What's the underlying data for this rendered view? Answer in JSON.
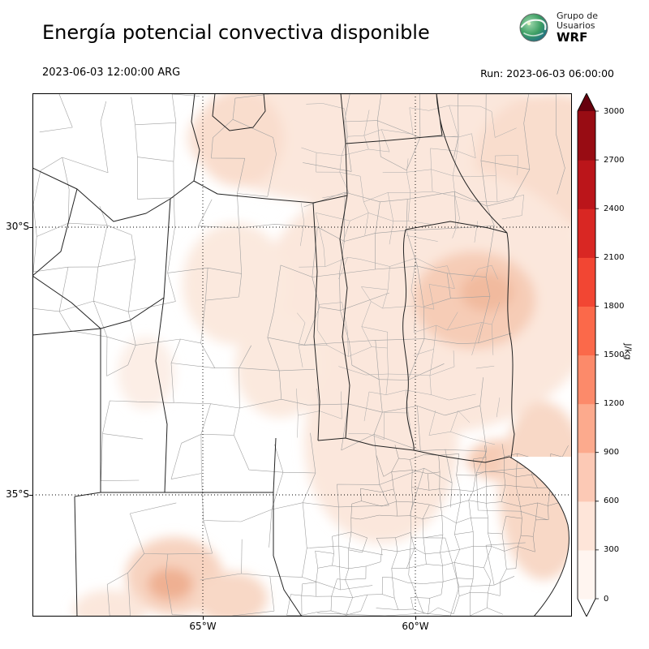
{
  "header": {
    "title": "Energía potencial convectiva disponible",
    "logo": {
      "org_line1": "Grupo de",
      "org_line2": "Usuarios",
      "org_line3": "WRF"
    }
  },
  "subheader": {
    "valid_time": "2023-06-03 12:00:00 ARG",
    "run_time": "Run: 2023-06-03 06:00:00"
  },
  "map": {
    "y_axis": {
      "labels": [
        "30°S",
        "35°S"
      ]
    },
    "x_axis": {
      "labels": [
        "65°W",
        "60°W"
      ]
    }
  },
  "colorbar": {
    "unit": "J/kg",
    "tick_values": [
      "0",
      "300",
      "600",
      "900",
      "1200",
      "1500",
      "1800",
      "2100",
      "2400",
      "2700",
      "3000"
    ],
    "segment_colors": [
      "#fff5f0",
      "#fee5d9",
      "#fcc9b5",
      "#fcaa8d",
      "#fc8a6a",
      "#fb694a",
      "#f24633",
      "#d92723",
      "#bb151a",
      "#980c13"
    ],
    "over_color": "#67000d",
    "under_color": "#ffffff",
    "accent_shading_colors": [
      "#fbe7dc",
      "#f9ddcd",
      "#f6ccb6",
      "#f1ba9e",
      "#efb092"
    ]
  }
}
